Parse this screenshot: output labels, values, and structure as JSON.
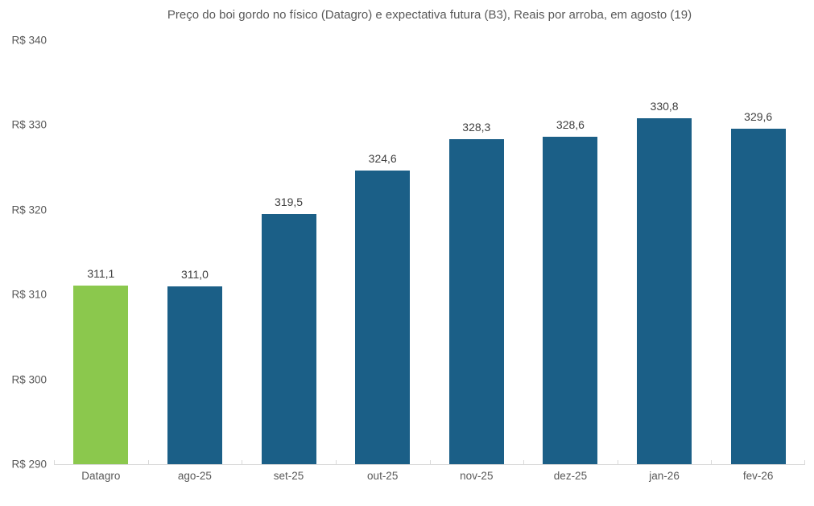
{
  "chart_data": {
    "type": "bar",
    "title": "Preço do boi gordo no físico (Datagro)  e expectativa futura (B3), Reais por arroba, em agosto (19)",
    "categories": [
      "Datagro",
      "ago-25",
      "set-25",
      "out-25",
      "nov-25",
      "dez-25",
      "jan-26",
      "fev-26"
    ],
    "values": [
      311.1,
      311.0,
      319.5,
      324.6,
      328.3,
      328.6,
      330.8,
      329.6
    ],
    "value_labels": [
      "311,1",
      "311,0",
      "319,5",
      "324,6",
      "328,3",
      "328,6",
      "330,8",
      "329,6"
    ],
    "highlight_index": 0,
    "colors": {
      "bar_highlight": "#8bc84d",
      "bar_default": "#1b5f87",
      "axis_line": "#d9d9d9",
      "axis_text": "#595959",
      "value_text": "#404040"
    },
    "y_axis": {
      "min": 290,
      "max": 340,
      "tick_step": 10,
      "ticks": [
        {
          "value": 340,
          "label": "R$ 340"
        },
        {
          "value": 330,
          "label": "R$ 330"
        },
        {
          "value": 320,
          "label": "R$ 320"
        },
        {
          "value": 310,
          "label": "R$ 310"
        },
        {
          "value": 300,
          "label": "R$ 300"
        },
        {
          "value": 290,
          "label": "R$ 290"
        }
      ]
    },
    "grid": false,
    "legend": "none"
  }
}
